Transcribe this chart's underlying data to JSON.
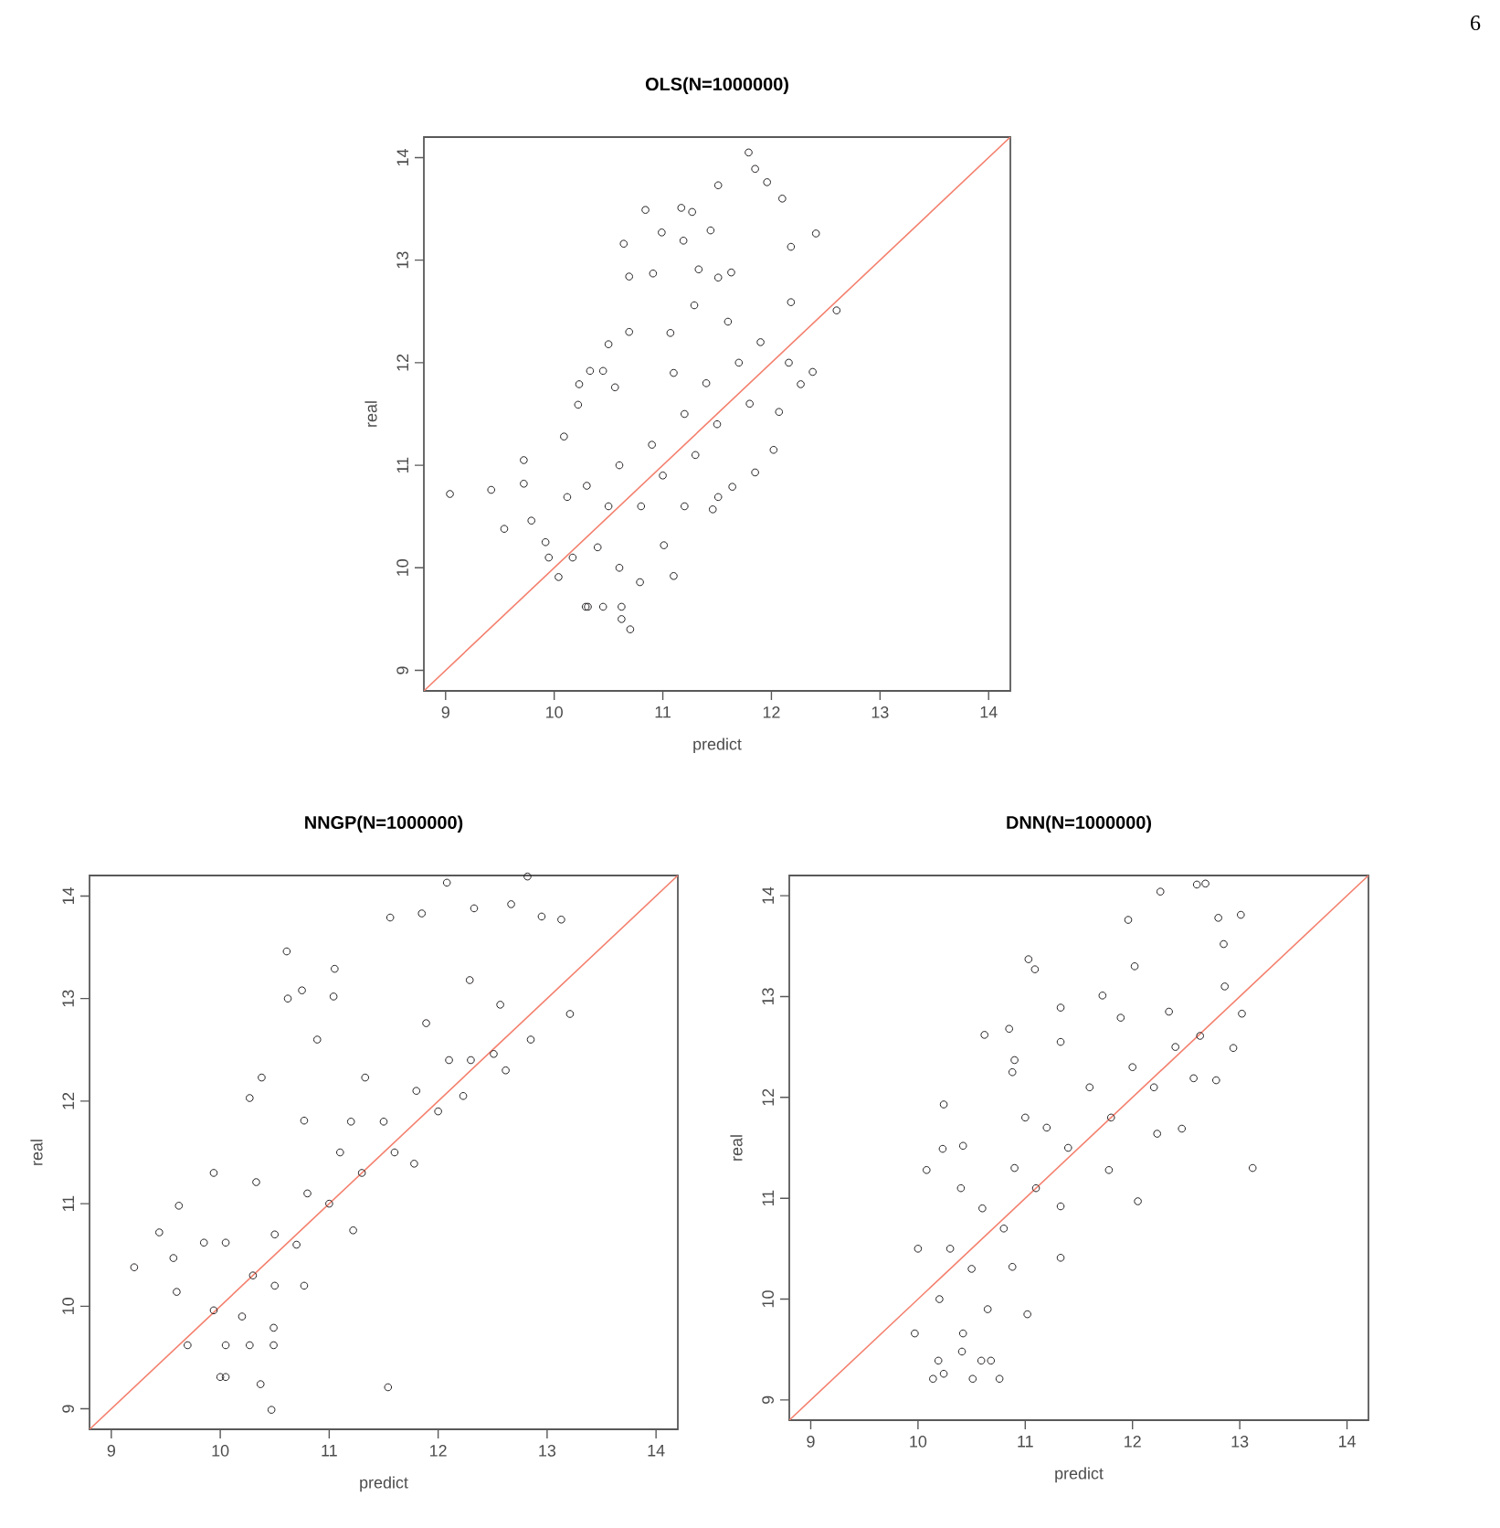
{
  "chart_data": [
    {
      "type": "scatter",
      "title": "OLS(N=1000000)",
      "xlabel": "predict",
      "ylabel": "real",
      "xlim": [
        8.8,
        14.2
      ],
      "ylim": [
        8.8,
        14.2
      ],
      "xticks": [
        9,
        10,
        11,
        12,
        13,
        14
      ],
      "yticks": [
        9,
        10,
        11,
        12,
        13,
        14
      ],
      "annotations": [
        "6"
      ],
      "series": [
        {
          "color": "#231f20",
          "marker": "circle",
          "x": [
            9.04,
            9.42,
            9.54,
            9.72,
            9.72,
            9.79,
            9.92,
            9.95,
            10.04,
            10.22,
            10.23,
            10.33,
            10.45,
            10.5,
            10.64,
            10.69,
            10.69,
            10.84,
            10.91,
            10.99,
            11.17,
            11.19,
            11.27,
            11.33,
            11.44,
            11.51,
            11.79,
            11.85,
            11.96,
            12.1,
            12.18,
            12.41,
            12.6,
            12.38,
            12.27,
            12.02,
            11.64,
            11.46,
            11.1,
            10.7,
            10.62,
            10.31,
            10.29,
            10.45,
            10.62,
            10.09,
            10.12,
            10.17,
            10.56,
            11.07,
            11.29,
            11.51,
            11.63,
            12.18,
            12.16,
            12.07,
            11.85,
            11.51,
            11.01,
            10.79,
            10.4,
            10.5,
            10.6,
            10.8,
            10.9,
            11.0,
            11.2,
            11.3,
            11.4,
            11.5,
            11.7,
            11.8,
            11.6,
            11.9,
            10.3,
            10.6,
            11.1,
            11.2
          ],
          "values": [
            10.72,
            10.76,
            10.38,
            11.05,
            10.82,
            10.46,
            10.25,
            10.1,
            9.91,
            11.59,
            11.79,
            11.92,
            11.92,
            12.18,
            13.16,
            12.84,
            12.3,
            13.49,
            12.87,
            13.27,
            13.51,
            13.19,
            13.47,
            12.91,
            13.29,
            13.73,
            14.05,
            13.89,
            13.76,
            13.6,
            13.13,
            13.26,
            12.51,
            11.91,
            11.79,
            11.15,
            10.79,
            10.57,
            9.92,
            9.4,
            9.5,
            9.62,
            9.62,
            9.62,
            9.62,
            11.28,
            10.69,
            10.1,
            11.76,
            12.29,
            12.56,
            12.83,
            12.88,
            12.59,
            12.0,
            11.52,
            10.93,
            10.69,
            10.22,
            9.86,
            10.2,
            10.6,
            11.0,
            10.6,
            11.2,
            10.9,
            11.5,
            11.1,
            11.8,
            11.4,
            12.0,
            11.6,
            12.4,
            12.2,
            10.8,
            10.0,
            11.9,
            10.6
          ]
        },
        {
          "type": "line",
          "color": "#f4806e",
          "x": [
            8.8,
            14.2
          ],
          "values": [
            8.8,
            14.2
          ]
        }
      ]
    },
    {
      "type": "scatter",
      "title": "NNGP(N=1000000)",
      "xlabel": "predict",
      "ylabel": "real",
      "xlim": [
        8.8,
        14.2
      ],
      "ylim": [
        8.8,
        14.2
      ],
      "xticks": [
        9,
        10,
        11,
        12,
        13,
        14
      ],
      "yticks": [
        9,
        10,
        11,
        12,
        13,
        14
      ],
      "series": [
        {
          "color": "#231f20",
          "marker": "circle",
          "x": [
            9.21,
            9.44,
            9.57,
            9.6,
            9.62,
            9.7,
            9.94,
            10.0,
            10.05,
            10.37,
            10.47,
            11.54,
            10.61,
            10.62,
            10.75,
            11.05,
            11.04,
            10.89,
            11.56,
            11.85,
            12.08,
            12.33,
            12.67,
            12.82,
            12.95,
            13.13,
            13.21,
            12.85,
            12.62,
            10.38,
            10.27,
            9.85,
            10.05,
            10.27,
            10.49,
            9.94,
            10.05,
            10.33,
            10.77,
            11.33,
            11.89,
            12.29,
            12.57,
            12.51,
            12.23,
            11.78,
            11.22,
            10.77,
            10.49,
            10.3,
            10.5,
            10.7,
            10.8,
            11.0,
            11.1,
            11.3,
            11.5,
            11.6,
            11.8,
            12.0,
            12.1,
            12.3,
            10.2,
            10.5,
            11.2
          ],
          "values": [
            10.38,
            10.72,
            10.47,
            10.14,
            10.98,
            9.62,
            11.3,
            9.31,
            9.31,
            9.24,
            8.99,
            9.21,
            13.46,
            13.0,
            13.08,
            13.29,
            13.02,
            12.6,
            13.79,
            13.83,
            14.13,
            13.88,
            13.92,
            14.19,
            13.8,
            13.77,
            12.85,
            12.6,
            12.3,
            12.23,
            12.03,
            10.62,
            9.62,
            9.62,
            9.62,
            9.96,
            10.62,
            11.21,
            11.81,
            12.23,
            12.76,
            13.18,
            12.94,
            12.46,
            12.05,
            11.39,
            10.74,
            10.2,
            9.79,
            10.3,
            10.7,
            10.6,
            11.1,
            11.0,
            11.5,
            11.3,
            11.8,
            11.5,
            12.1,
            11.9,
            12.4,
            12.4,
            9.9,
            10.2,
            11.8
          ]
        },
        {
          "type": "line",
          "color": "#f4806e",
          "x": [
            8.8,
            14.2
          ],
          "values": [
            8.8,
            14.2
          ]
        }
      ]
    },
    {
      "type": "scatter",
      "title": "DNN(N=1000000)",
      "xlabel": "predict",
      "ylabel": "real",
      "xlim": [
        8.8,
        14.2
      ],
      "ylim": [
        8.8,
        14.2
      ],
      "xticks": [
        9,
        10,
        11,
        12,
        13,
        14
      ],
      "yticks": [
        9,
        10,
        11,
        12,
        13,
        14
      ],
      "series": [
        {
          "color": "#231f20",
          "marker": "circle",
          "x": [
            10.14,
            10.24,
            10.19,
            10.51,
            10.76,
            10.59,
            10.68,
            10.41,
            11.02,
            11.33,
            12.05,
            13.12,
            10.24,
            10.23,
            10.62,
            10.85,
            11.03,
            11.09,
            11.72,
            11.96,
            12.02,
            12.26,
            12.6,
            12.68,
            12.8,
            13.01,
            12.85,
            12.86,
            13.02,
            12.94,
            12.78,
            12.46,
            11.33,
            10.9,
            9.97,
            10.42,
            10.0,
            10.08,
            10.42,
            10.88,
            11.33,
            11.89,
            12.34,
            12.63,
            12.57,
            12.23,
            11.78,
            11.33,
            10.88,
            10.65,
            10.2,
            10.3,
            10.5,
            10.6,
            10.8,
            10.9,
            11.1,
            11.2,
            11.4,
            11.6,
            11.8,
            12.0,
            12.2,
            12.4,
            10.4,
            11.0
          ],
          "values": [
            9.21,
            9.26,
            9.39,
            9.21,
            9.21,
            9.39,
            9.39,
            9.48,
            9.85,
            10.41,
            10.97,
            11.3,
            11.93,
            11.49,
            12.62,
            12.68,
            13.37,
            13.27,
            13.01,
            13.76,
            13.3,
            14.04,
            14.11,
            14.12,
            13.78,
            13.81,
            13.52,
            13.1,
            12.83,
            12.49,
            12.17,
            11.69,
            12.89,
            12.37,
            9.66,
            9.66,
            10.5,
            11.28,
            11.52,
            12.25,
            12.55,
            12.79,
            12.85,
            12.61,
            12.19,
            11.64,
            11.28,
            10.92,
            10.32,
            9.9,
            10.0,
            10.5,
            10.3,
            10.9,
            10.7,
            11.3,
            11.1,
            11.7,
            11.5,
            12.1,
            11.8,
            12.3,
            12.1,
            12.5,
            11.1,
            11.8
          ]
        },
        {
          "type": "line",
          "color": "#f4806e",
          "x": [
            8.8,
            14.2
          ],
          "values": [
            8.8,
            14.2
          ]
        }
      ]
    }
  ]
}
